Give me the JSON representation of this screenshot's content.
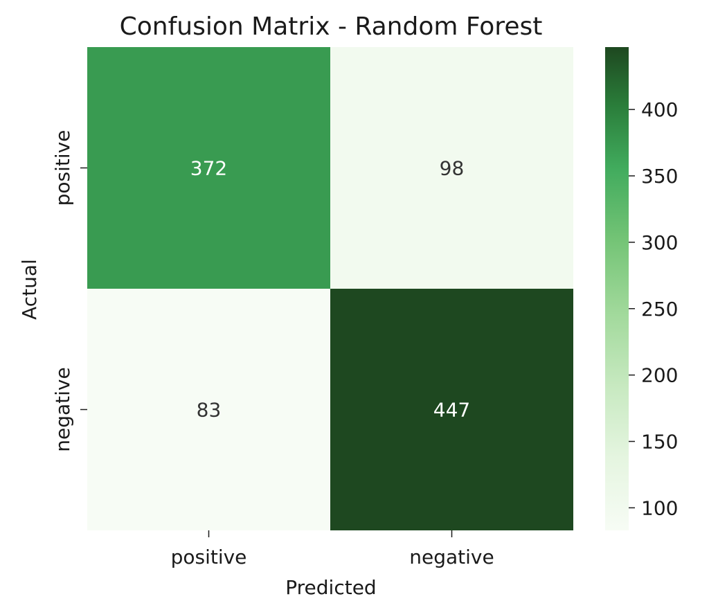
{
  "chart_data": {
    "type": "heatmap",
    "title": "Confusion Matrix - Random Forest",
    "xlabel": "Predicted",
    "ylabel": "Actual",
    "x_categories": [
      "positive",
      "negative"
    ],
    "y_categories": [
      "positive",
      "negative"
    ],
    "values": [
      [
        372,
        98
      ],
      [
        83,
        447
      ]
    ],
    "colormap": "Greens",
    "color_range": [
      83,
      447
    ],
    "colorbar_ticks": [
      100,
      150,
      200,
      250,
      300,
      350,
      400
    ],
    "colors": {
      "low": "#f7fcf5",
      "high": "#1e4820"
    }
  }
}
